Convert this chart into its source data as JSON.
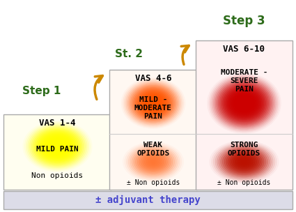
{
  "fig_w": 4.25,
  "fig_h": 3.04,
  "dpi": 100,
  "bg_color": "#ffffff",
  "step_label_color": "#2d6b1a",
  "adjuvant_text": "± adjuvant therapy",
  "adjuvant_color": "#4444cc",
  "adjuvant_bg": "#dcdce8",
  "arrow_color": "#cc8800",
  "vas1_text": "VAS 1-4",
  "pain1_text": "MILD PAIN",
  "drug1_text": "Non opioids",
  "vas2_text": "VAS 4-6",
  "pain2_text": "MILD -\nMODERATE\nPAIN",
  "drug2_text": "WEAK\nOPIOIDS",
  "drug2b_text": "± Non opioids",
  "vas3_text": "VAS 6-10",
  "pain3_text": "MODERATE -\nSEVERE\nPAIN",
  "drug3_text": "STRONG\nOPIOIDS",
  "drug3b_text": "± Non opioids",
  "step1_label": "Step 1",
  "step2_label": "St. 2",
  "step3_label": "Step 3"
}
